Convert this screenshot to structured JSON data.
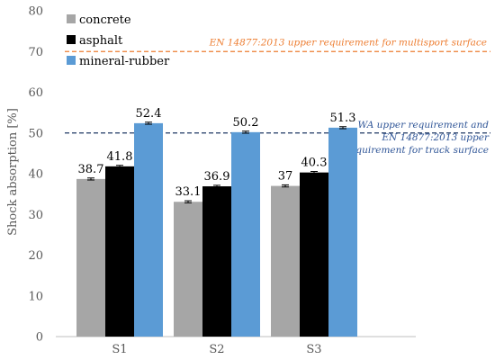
{
  "chart_data": {
    "type": "bar",
    "categories": [
      "S1",
      "S2",
      "S3"
    ],
    "series": [
      {
        "name": "concrete",
        "values": [
          38.7,
          33.1,
          37
        ],
        "color": "#a6a6a6"
      },
      {
        "name": "asphalt",
        "values": [
          41.8,
          36.9,
          40.3
        ],
        "color": "#000000"
      },
      {
        "name": "mineral-rubber",
        "values": [
          52.4,
          50.2,
          51.3
        ],
        "color": "#5b9bd5"
      }
    ],
    "error_bars": true,
    "ylabel": "Shock absorption [%]",
    "xlabel": "",
    "ylim": [
      0,
      80
    ],
    "yticks": [
      0,
      10,
      20,
      30,
      40,
      50,
      60,
      70,
      80
    ],
    "grid": false,
    "legend_position": "top-left",
    "reference_lines": [
      {
        "value": 70,
        "style": "dashed",
        "color": "#ed7d31",
        "label_lines": [
          "EN 14877:2013 upper requirement for multisport surface"
        ]
      },
      {
        "value": 50,
        "style": "dashed",
        "color": "#1f3864",
        "label_color": "#2f5597",
        "label_lines": [
          "WA upper requirement and",
          "EN 14877:2013 upper",
          "requirement for track surface"
        ]
      }
    ]
  }
}
